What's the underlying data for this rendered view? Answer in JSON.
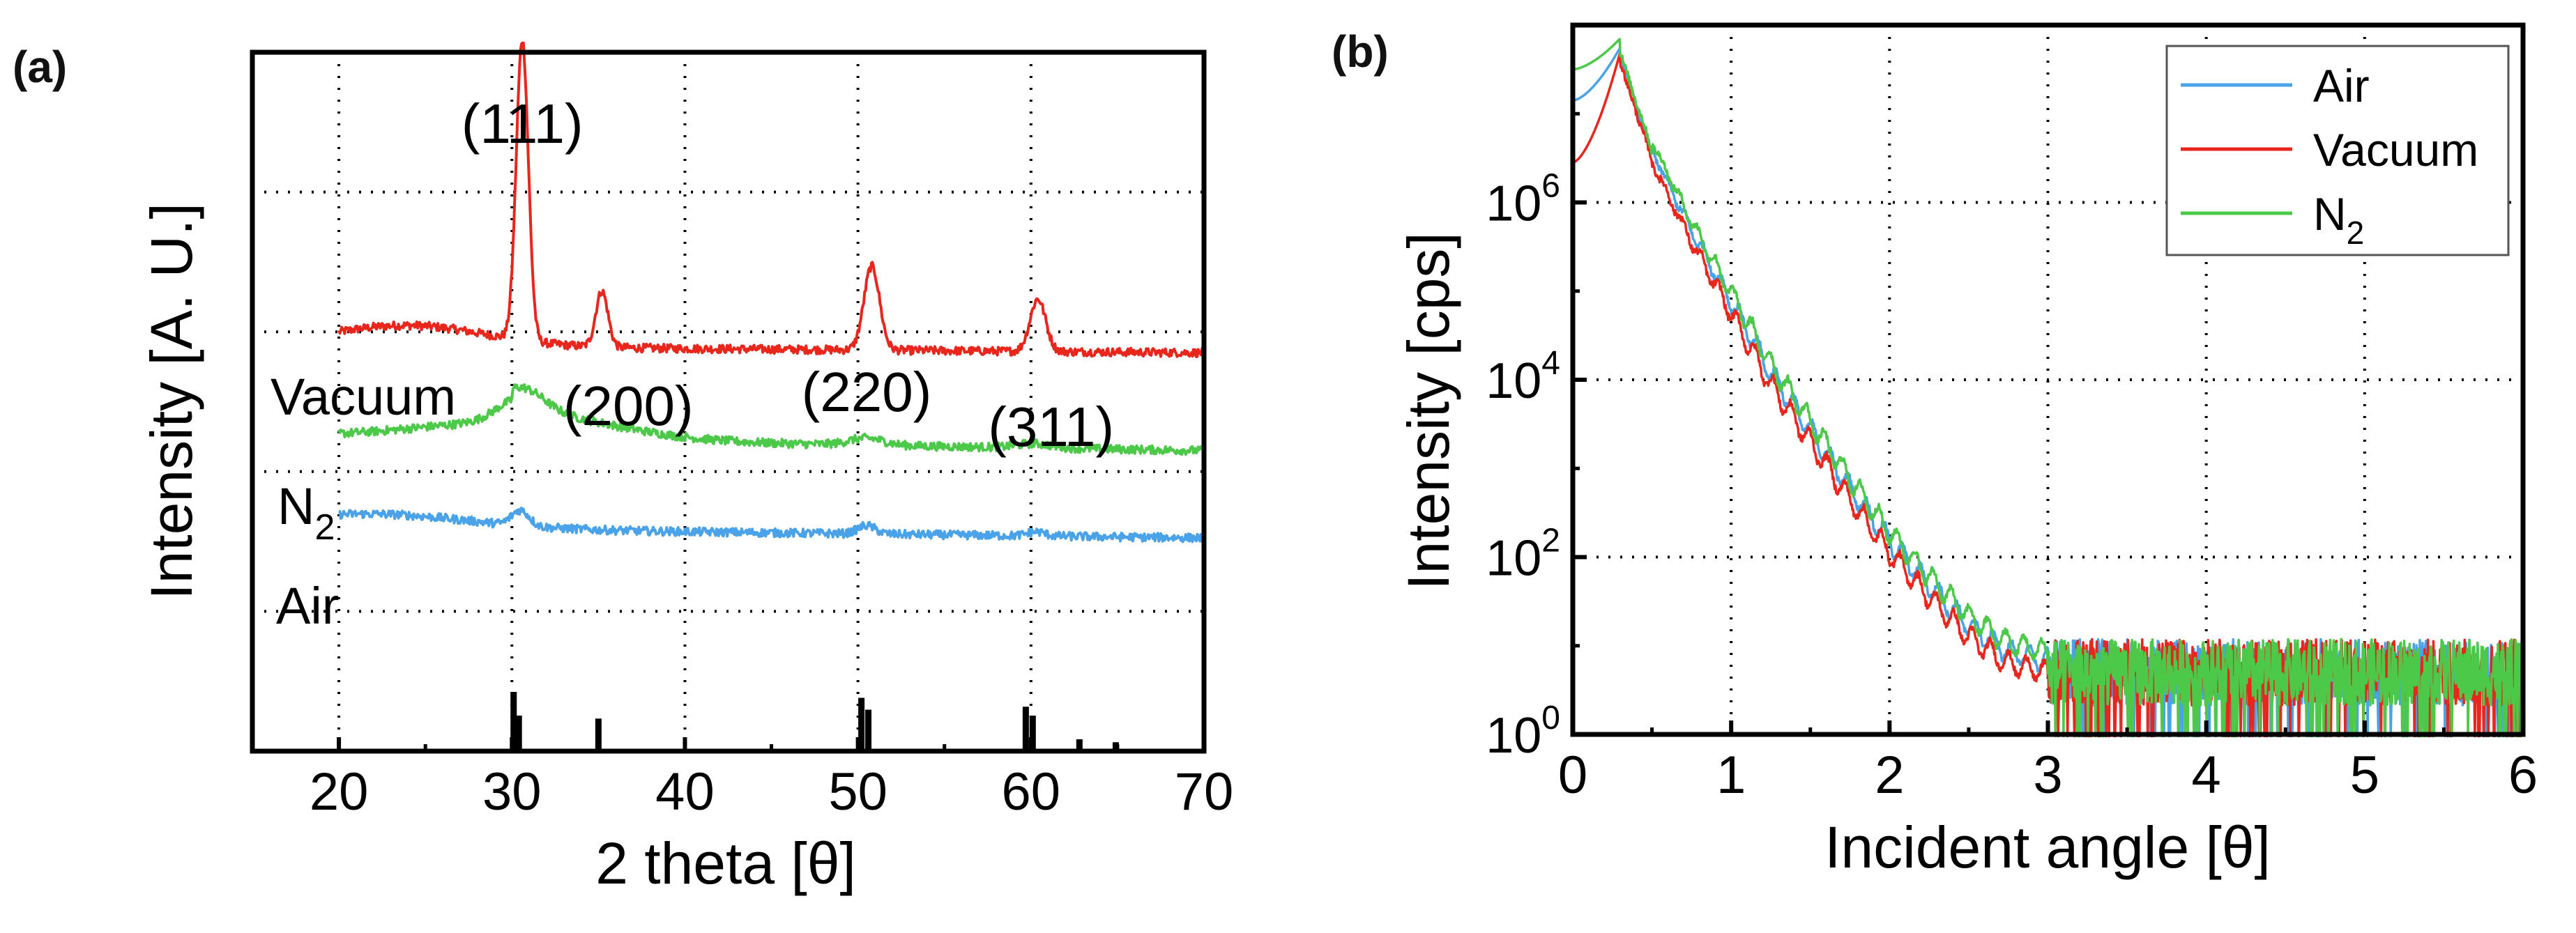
{
  "chart_data": [
    {
      "panel_label": "(a)",
      "type": "line",
      "xlabel": "2 theta [θ]",
      "ylabel": "Intensity [A. U.]",
      "xlim": [
        15,
        70
      ],
      "x_ticks": [
        "20",
        "30",
        "40",
        "50",
        "60",
        "70"
      ],
      "grid": true,
      "series": [
        {
          "name": "Vacuum",
          "color": "#e8261c",
          "baseline": 0.58,
          "peaks": [
            {
              "x": 30.6,
              "height": 0.43,
              "width": 0.35
            },
            {
              "x": 35.2,
              "height": 0.08,
              "width": 0.35
            },
            {
              "x": 50.8,
              "height": 0.12,
              "width": 0.45
            },
            {
              "x": 60.4,
              "height": 0.075,
              "width": 0.45
            }
          ]
        },
        {
          "name": "N",
          "name_subscript": "2",
          "color": "#4dc94a",
          "baseline": 0.45,
          "peaks": [
            {
              "x": 30.5,
              "height": 0.035,
              "width": 1.3
            },
            {
              "x": 50.5,
              "height": 0.01,
              "width": 1.0
            },
            {
              "x": 60.2,
              "height": 0.006,
              "width": 1.0
            }
          ]
        },
        {
          "name": "Air",
          "color": "#4aa3e8",
          "baseline": 0.32,
          "peaks": [
            {
              "x": 30.5,
              "height": 0.022,
              "width": 0.5
            },
            {
              "x": 50.5,
              "height": 0.012,
              "width": 0.5
            },
            {
              "x": 60.3,
              "height": 0.006,
              "width": 0.5
            }
          ]
        }
      ],
      "reference_lines": [
        {
          "x": 30.1,
          "height": 1.0
        },
        {
          "x": 30.4,
          "height": 0.6
        },
        {
          "x": 35.0,
          "height": 0.55
        },
        {
          "x": 50.2,
          "height": 0.9
        },
        {
          "x": 50.6,
          "height": 0.7
        },
        {
          "x": 59.7,
          "height": 0.75
        },
        {
          "x": 60.1,
          "height": 0.6
        },
        {
          "x": 62.8,
          "height": 0.2
        },
        {
          "x": 64.9,
          "height": 0.15
        }
      ],
      "annotations": [
        {
          "text": "(111)",
          "x": 30.6
        },
        {
          "text": "(200)",
          "x": 35.6
        },
        {
          "text": "(220)",
          "x": 50.5
        },
        {
          "text": "(311)",
          "x": 60.6
        }
      ]
    },
    {
      "panel_label": "(b)",
      "type": "line",
      "xlabel": "Incident angle [θ]",
      "ylabel": "Intensity [cps]",
      "xlim": [
        0,
        6
      ],
      "ylim_log10": [
        0,
        8
      ],
      "y_scale": "log",
      "x_ticks": [
        "0",
        "1",
        "2",
        "3",
        "4",
        "5",
        "6"
      ],
      "y_tick_base": "10",
      "y_tick_exponents": [
        "0",
        "2",
        "4",
        "6"
      ],
      "grid": true,
      "legend": {
        "position": "top-right"
      },
      "series": [
        {
          "name": "Air",
          "color": "#4aa3e8",
          "start_log10": 7.15,
          "peak_log10": 7.75
        },
        {
          "name": "Vacuum",
          "color": "#e8261c",
          "start_log10": 6.45,
          "peak_log10": 7.7
        },
        {
          "name": "N",
          "name_subscript": "2",
          "color": "#4dc94a",
          "start_log10": 7.5,
          "peak_log10": 7.85
        }
      ],
      "profile": {
        "peak_angle": 0.3,
        "decay_points": [
          [
            0.3,
            7.6
          ],
          [
            0.5,
            6.5
          ],
          [
            0.75,
            5.6
          ],
          [
            1.0,
            4.8
          ],
          [
            1.25,
            4.0
          ],
          [
            1.5,
            3.35
          ],
          [
            1.75,
            2.7
          ],
          [
            2.0,
            2.1
          ],
          [
            2.25,
            1.6
          ],
          [
            2.5,
            1.15
          ],
          [
            2.75,
            0.85
          ],
          [
            3.0,
            0.75
          ],
          [
            3.25,
            0.7
          ],
          [
            6.0,
            0.7
          ]
        ],
        "noise_floor_log10": 0.7
      }
    }
  ]
}
